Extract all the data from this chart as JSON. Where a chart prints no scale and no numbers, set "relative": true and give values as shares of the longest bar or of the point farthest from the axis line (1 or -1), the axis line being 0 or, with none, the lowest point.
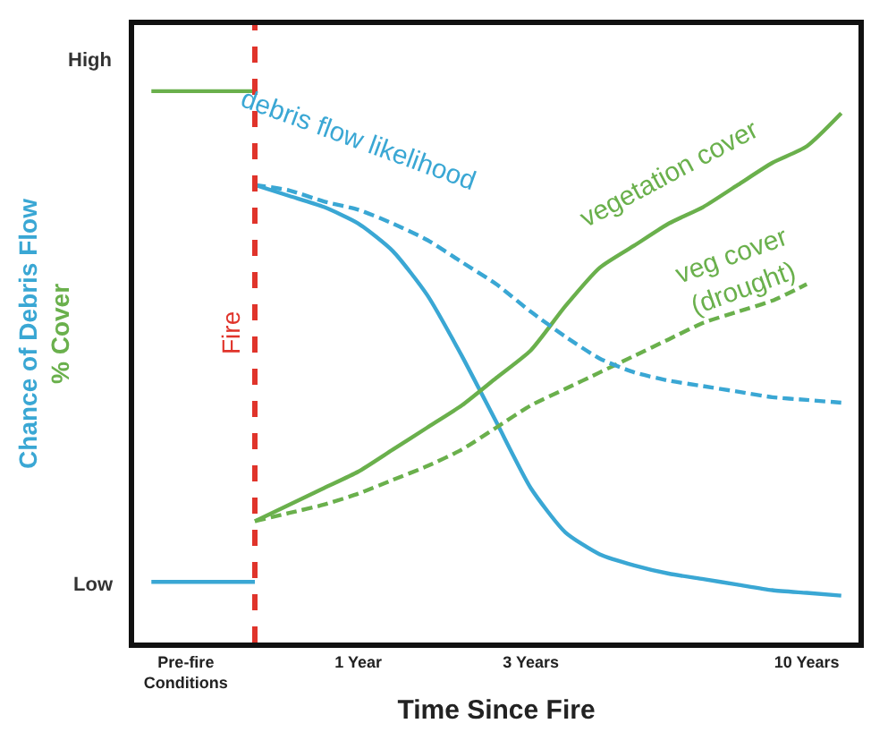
{
  "chart_data": {
    "type": "line",
    "relative": true,
    "xlabel": "Time Since Fire",
    "ylabel": "Chance of Debris Flow\n% Cover",
    "categories": [
      null,
      "Pre-fire\nConditions",
      null,
      null,
      null,
      null,
      "1 Year",
      null,
      null,
      null,
      null,
      "3 Years",
      null,
      null,
      null,
      null,
      null,
      null,
      null,
      "10 Years",
      null
    ],
    "series": [
      {
        "name": "debris flow likelihood",
        "color": "#3aa7d4",
        "line_style": "solid",
        "values": [
          null,
          null,
          null,
          0.83,
          0.81,
          0.79,
          0.76,
          0.71,
          0.63,
          0.52,
          0.4,
          0.28,
          0.2,
          0.16,
          0.14,
          0.125,
          0.115,
          0.105,
          0.095,
          0.09,
          0.085
        ]
      },
      {
        "name": "vegetation cover",
        "color": "#6ab04c",
        "line_style": "solid",
        "values": [
          null,
          null,
          null,
          0.22,
          0.25,
          0.28,
          0.31,
          0.35,
          0.39,
          0.43,
          0.48,
          0.53,
          0.61,
          0.68,
          0.72,
          0.76,
          0.79,
          0.83,
          0.87,
          0.9,
          0.96
        ]
      },
      {
        "name": "veg cover (drought)",
        "color": "#6ab04c",
        "line_style": "dashed",
        "values": [
          null,
          null,
          null,
          0.22,
          0.235,
          0.25,
          0.27,
          0.295,
          0.32,
          0.35,
          0.39,
          0.43,
          0.46,
          0.49,
          0.52,
          0.55,
          0.58,
          0.6,
          0.62,
          0.65,
          null
        ]
      },
      {
        "color": "#3aa7d4",
        "line_style": "dashed",
        "values": [
          null,
          null,
          null,
          0.83,
          0.82,
          0.8,
          0.785,
          0.76,
          0.73,
          0.69,
          0.65,
          0.6,
          0.555,
          0.515,
          0.49,
          0.475,
          0.465,
          0.455,
          0.445,
          0.44,
          0.435
        ]
      },
      {
        "color": "#6ab04c",
        "line_style": "solid",
        "values": [
          1.0,
          1.0,
          1.0,
          1.0,
          null,
          null,
          null,
          null,
          null,
          null,
          null,
          null,
          null,
          null,
          null,
          null,
          null,
          null,
          null,
          null,
          null
        ]
      },
      {
        "color": "#3aa7d4",
        "line_style": "solid",
        "values": [
          0.11,
          0.11,
          0.11,
          0.11,
          null,
          null,
          null,
          null,
          null,
          null,
          null,
          null,
          null,
          null,
          null,
          null,
          null,
          null,
          null,
          null,
          null
        ]
      }
    ],
    "annotations": [
      "High",
      "Low",
      "Fire"
    ],
    "legend": false
  }
}
